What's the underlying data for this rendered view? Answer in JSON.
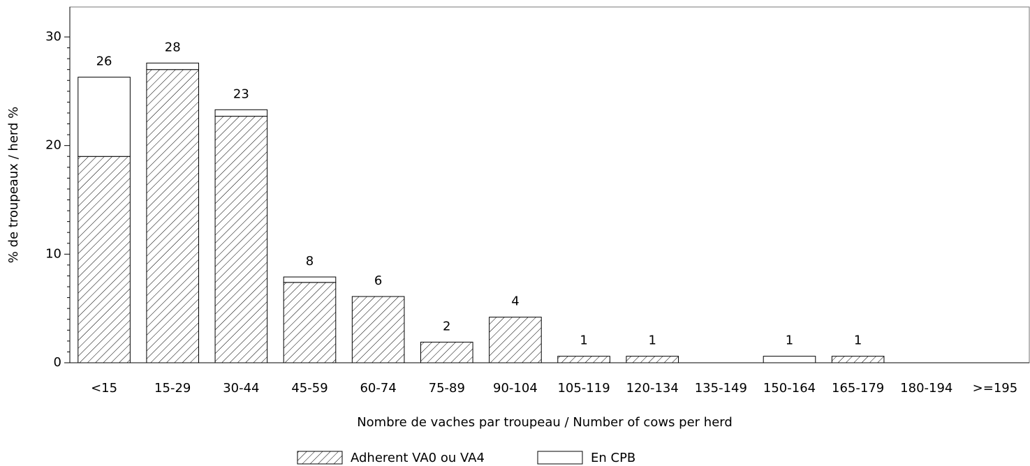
{
  "chart_data": {
    "type": "stacked_bar",
    "categories": [
      "<15",
      "15-29",
      "30-44",
      "45-59",
      "60-74",
      "75-89",
      "90-104",
      "105-119",
      "120-134",
      "135-149",
      "150-164",
      "165-179",
      "180-194",
      ">=195"
    ],
    "series": [
      {
        "name": "Adherent VA0 ou VA4",
        "color": "#000000",
        "fill": "hatch",
        "values": [
          19.0,
          27.0,
          22.7,
          7.4,
          6.1,
          1.9,
          4.2,
          0.6,
          0.6,
          0,
          0,
          0.6,
          0,
          0
        ]
      },
      {
        "name": "En CPB",
        "color": "#000000",
        "fill": "white",
        "values": [
          7.3,
          0.6,
          0.6,
          0.5,
          0,
          0,
          0,
          0,
          0,
          0,
          0.6,
          0,
          0,
          0
        ]
      }
    ],
    "total_labels": [
      "26",
      "28",
      "23",
      "8",
      "6",
      "2",
      "4",
      "1",
      "1",
      null,
      "1",
      "1",
      null,
      null
    ],
    "xlabel": "Nombre de vaches par troupeau / Number of cows per herd",
    "ylabel": "% de troupeaux / herd %",
    "ylim": [
      0,
      30
    ],
    "yticks": [
      0,
      10,
      20,
      30
    ],
    "minor_ticks": true,
    "legend": "bottom"
  }
}
